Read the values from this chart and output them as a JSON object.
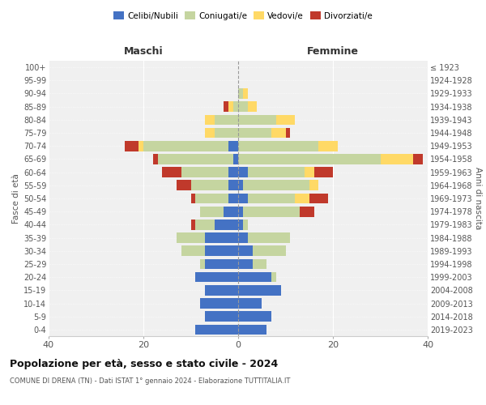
{
  "age_groups": [
    "0-4",
    "5-9",
    "10-14",
    "15-19",
    "20-24",
    "25-29",
    "30-34",
    "35-39",
    "40-44",
    "45-49",
    "50-54",
    "55-59",
    "60-64",
    "65-69",
    "70-74",
    "75-79",
    "80-84",
    "85-89",
    "90-94",
    "95-99",
    "100+"
  ],
  "birth_years": [
    "2019-2023",
    "2014-2018",
    "2009-2013",
    "2004-2008",
    "1999-2003",
    "1994-1998",
    "1989-1993",
    "1984-1988",
    "1979-1983",
    "1974-1978",
    "1969-1973",
    "1964-1968",
    "1959-1963",
    "1954-1958",
    "1949-1953",
    "1944-1948",
    "1939-1943",
    "1934-1938",
    "1929-1933",
    "1924-1928",
    "≤ 1923"
  ],
  "male": {
    "celibi": [
      9,
      7,
      8,
      7,
      9,
      7,
      7,
      7,
      5,
      3,
      2,
      2,
      2,
      1,
      2,
      0,
      0,
      0,
      0,
      0,
      0
    ],
    "coniugati": [
      0,
      0,
      0,
      0,
      0,
      1,
      5,
      6,
      4,
      5,
      7,
      8,
      10,
      16,
      18,
      5,
      5,
      1,
      0,
      0,
      0
    ],
    "vedovi": [
      0,
      0,
      0,
      0,
      0,
      0,
      0,
      0,
      0,
      0,
      0,
      0,
      0,
      0,
      1,
      2,
      2,
      1,
      0,
      0,
      0
    ],
    "divorziati": [
      0,
      0,
      0,
      0,
      0,
      0,
      0,
      0,
      1,
      0,
      1,
      3,
      4,
      1,
      3,
      0,
      0,
      1,
      0,
      0,
      0
    ]
  },
  "female": {
    "nubili": [
      6,
      7,
      5,
      9,
      7,
      3,
      3,
      2,
      1,
      1,
      2,
      1,
      2,
      0,
      0,
      0,
      0,
      0,
      0,
      0,
      0
    ],
    "coniugate": [
      0,
      0,
      0,
      0,
      1,
      3,
      7,
      9,
      1,
      12,
      10,
      14,
      12,
      30,
      17,
      7,
      8,
      2,
      1,
      0,
      0
    ],
    "vedove": [
      0,
      0,
      0,
      0,
      0,
      0,
      0,
      0,
      0,
      0,
      3,
      2,
      2,
      7,
      4,
      3,
      4,
      2,
      1,
      0,
      0
    ],
    "divorziate": [
      0,
      0,
      0,
      0,
      0,
      0,
      0,
      0,
      0,
      3,
      4,
      0,
      4,
      2,
      0,
      1,
      0,
      0,
      0,
      0,
      0
    ]
  },
  "colors": {
    "celibi": "#4472c4",
    "coniugati": "#c5d5a0",
    "vedovi": "#ffd966",
    "divorziati": "#c0392b"
  },
  "xlim": 40,
  "title": "Popolazione per età, sesso e stato civile - 2024",
  "subtitle": "COMUNE DI DRENA (TN) - Dati ISTAT 1° gennaio 2024 - Elaborazione TUTTITALIA.IT",
  "ylabel_left": "Fasce di età",
  "ylabel_right": "Anni di nascita",
  "xlabel_left": "Maschi",
  "xlabel_right": "Femmine",
  "bg_color": "#f0f0f0"
}
